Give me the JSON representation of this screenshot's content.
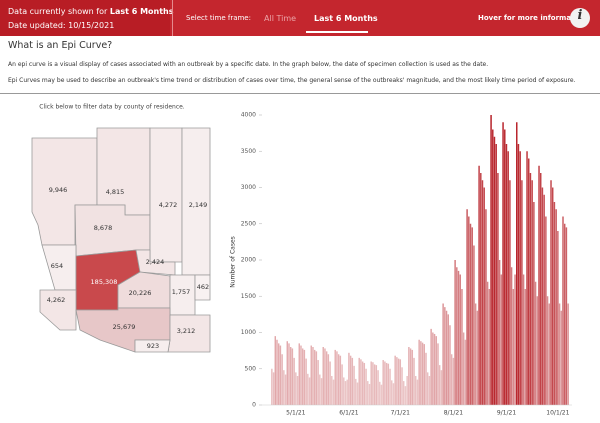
{
  "header": {
    "shown_prefix": "Data currently shown for",
    "shown_value": "Last 6 Months",
    "updated": "Date updated: 10/15/2021",
    "timeframe_label": "Select time frame:",
    "tabs": [
      "All Time",
      "Last 6 Months"
    ],
    "hover": "Hover for more information",
    "info_icon": "i"
  },
  "section": {
    "title": "What is an Epi Curve?",
    "paragraphs": [
      "An epi curve is a visual display of cases associated with an outbreak by a specific date. In the graph below, the date of specimen collection is used as the date.",
      "Epi Curves may be used to describe an outbreak's time trend or distribution of cases over time, the general sense of the outbreaks' magnitude, and the most likely time period of exposure."
    ]
  },
  "map": {
    "caption": "Click below to filter data by county of residence.",
    "counties": [
      "9,946",
      "4,815",
      "8,678",
      "4,272",
      "2,149",
      "654",
      "185,308",
      "2,424",
      "20,226",
      "1,757",
      "462",
      "4,262",
      "25,679",
      "3,212",
      "923"
    ]
  },
  "chart_data": {
    "type": "bar",
    "y_label": "Number of Cases",
    "categories": [
      null,
      null,
      null,
      null,
      null,
      null,
      null,
      null,
      null,
      null,
      null,
      null,
      null,
      null,
      "5/1/21",
      null,
      null,
      null,
      null,
      null,
      null,
      null,
      null,
      null,
      null,
      null,
      null,
      null,
      null,
      null,
      null,
      null,
      null,
      null,
      null,
      null,
      null,
      null,
      null,
      null,
      null,
      null,
      null,
      null,
      null,
      "6/1/21",
      null,
      null,
      null,
      null,
      null,
      null,
      null,
      null,
      null,
      null,
      null,
      null,
      null,
      null,
      null,
      null,
      null,
      null,
      null,
      null,
      null,
      null,
      null,
      null,
      null,
      null,
      null,
      null,
      null,
      "7/1/21",
      null,
      null,
      null,
      null,
      null,
      null,
      null,
      null,
      null,
      null,
      null,
      null,
      null,
      null,
      null,
      null,
      null,
      null,
      null,
      null,
      null,
      null,
      null,
      null,
      null,
      null,
      null,
      null,
      null,
      null,
      "8/1/21",
      null,
      null,
      null,
      null,
      null,
      null,
      null,
      null,
      null,
      null,
      null,
      null,
      null,
      null,
      null,
      null,
      null,
      null,
      null,
      null,
      null,
      null,
      null,
      null,
      null,
      null,
      null,
      null,
      null,
      null,
      "9/1/21",
      null,
      null,
      null,
      null,
      null,
      null,
      null,
      null,
      null,
      null,
      null,
      null,
      null,
      null,
      null,
      null,
      null,
      null,
      null,
      null,
      null,
      null,
      null,
      null,
      null,
      null,
      null,
      null,
      null,
      "10/1/21",
      null,
      null,
      null,
      null,
      null,
      null
    ],
    "values": [
      500,
      450,
      950,
      900,
      850,
      820,
      700,
      480,
      420,
      880,
      850,
      800,
      780,
      650,
      450,
      400,
      850,
      820,
      780,
      760,
      640,
      430,
      380,
      820,
      800,
      760,
      740,
      620,
      420,
      370,
      800,
      780,
      740,
      700,
      600,
      400,
      350,
      760,
      740,
      700,
      680,
      560,
      380,
      330,
      350,
      720,
      680,
      650,
      540,
      360,
      310,
      650,
      630,
      600,
      580,
      500,
      330,
      290,
      600,
      590,
      560,
      550,
      480,
      320,
      280,
      620,
      600,
      580,
      570,
      500,
      340,
      300,
      680,
      660,
      640,
      630,
      520,
      330,
      260,
      400,
      800,
      780,
      760,
      650,
      400,
      350,
      900,
      880,
      860,
      840,
      720,
      450,
      400,
      1050,
      1000,
      980,
      950,
      850,
      550,
      480,
      1400,
      1350,
      1300,
      1250,
      1100,
      700,
      650,
      2000,
      1900,
      1850,
      1800,
      1600,
      1000,
      900,
      2700,
      2600,
      2500,
      2450,
      2200,
      1400,
      1300,
      3300,
      3200,
      3100,
      3000,
      2700,
      1700,
      1600,
      4000,
      3800,
      3700,
      3600,
      3200,
      2000,
      1800,
      3900,
      3800,
      3600,
      3500,
      3100,
      1900,
      1600,
      1800,
      3900,
      3600,
      3500,
      3100,
      1800,
      1600,
      3500,
      3400,
      3200,
      3100,
      2800,
      1700,
      1500,
      3300,
      3200,
      3000,
      2900,
      2600,
      1500,
      1400,
      3100,
      3000,
      2800,
      2700,
      2400,
      1400,
      1300,
      2600,
      2500,
      2450,
      1400
    ],
    "color_scale": [
      "#efd3d4",
      "#b3141c"
    ],
    "ylim": [
      0,
      4100
    ],
    "yticks": [
      0,
      500,
      1000,
      1500,
      2000,
      2500,
      3000,
      3500,
      4000
    ]
  }
}
